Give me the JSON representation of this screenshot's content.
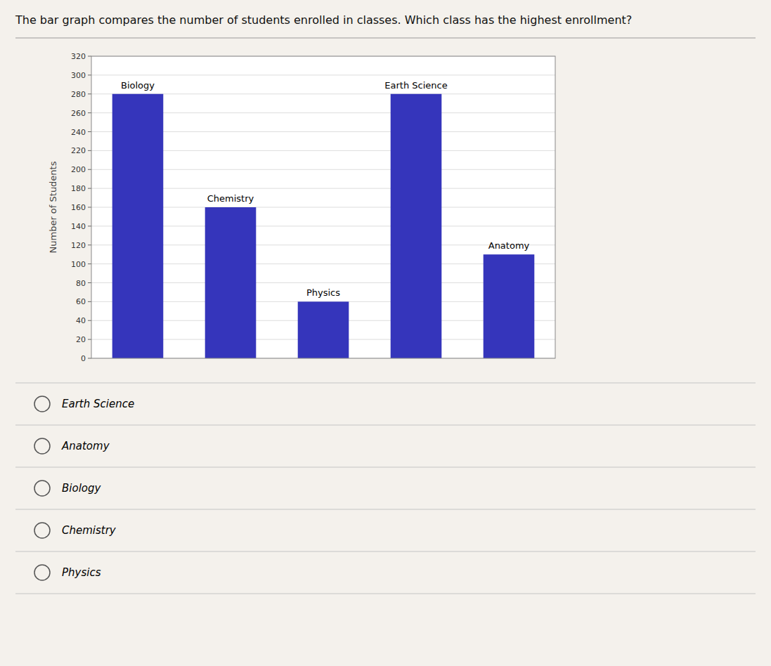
{
  "chart_data": {
    "type": "bar",
    "title": "The bar graph compares the number of students enrolled in classes. Which class has the highest enrollment?",
    "categories": [
      "Biology",
      "Chemistry",
      "Physics",
      "Earth Science",
      "Anatomy"
    ],
    "values": [
      280,
      160,
      60,
      280,
      110
    ],
    "color": "#3535BB",
    "ylabel": "Number of Students",
    "ylim": [
      0,
      320
    ],
    "yticks": [
      0,
      20,
      40,
      60,
      80,
      100,
      120,
      140,
      160,
      180,
      200,
      220,
      240,
      260,
      280,
      300,
      320
    ],
    "grid": true,
    "annotations": [
      "Earth Science",
      "Anatomy",
      "Biology",
      "Chemistry",
      "Physics"
    ]
  }
}
